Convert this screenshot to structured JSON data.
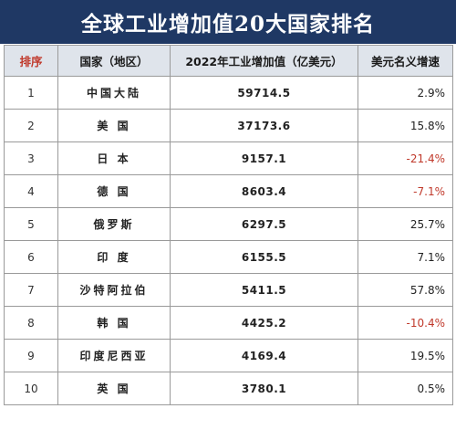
{
  "title": "全球工业增加值20大国家排名",
  "headers": {
    "rank": "排序",
    "country": "国家（地区）",
    "value": "2022年工业增加值（亿美元）",
    "growth": "美元名义增速"
  },
  "rows": [
    {
      "rank": "1",
      "country": "中国大陆",
      "value": "59714.5",
      "growth": "2.9%",
      "negative": false
    },
    {
      "rank": "2",
      "country": "美 国",
      "value": "37173.6",
      "growth": "15.8%",
      "negative": false
    },
    {
      "rank": "3",
      "country": "日 本",
      "value": "9157.1",
      "growth": "-21.4%",
      "negative": true
    },
    {
      "rank": "4",
      "country": "德 国",
      "value": "8603.4",
      "growth": "-7.1%",
      "negative": true
    },
    {
      "rank": "5",
      "country": "俄罗斯",
      "value": "6297.5",
      "growth": "25.7%",
      "negative": false
    },
    {
      "rank": "6",
      "country": "印 度",
      "value": "6155.5",
      "growth": "7.1%",
      "negative": false
    },
    {
      "rank": "7",
      "country": "沙特阿拉伯",
      "value": "5411.5",
      "growth": "57.8%",
      "negative": false
    },
    {
      "rank": "8",
      "country": "韩 国",
      "value": "4425.2",
      "growth": "-10.4%",
      "negative": true
    },
    {
      "rank": "9",
      "country": "印度尼西亚",
      "value": "4169.4",
      "growth": "19.5%",
      "negative": false
    },
    {
      "rank": "10",
      "country": "英 国",
      "value": "3780.1",
      "growth": "0.5%",
      "negative": false
    }
  ],
  "colors": {
    "title_bg": "#1f3864",
    "header_bg": "#dfe4eb",
    "negative": "#c0392b"
  }
}
